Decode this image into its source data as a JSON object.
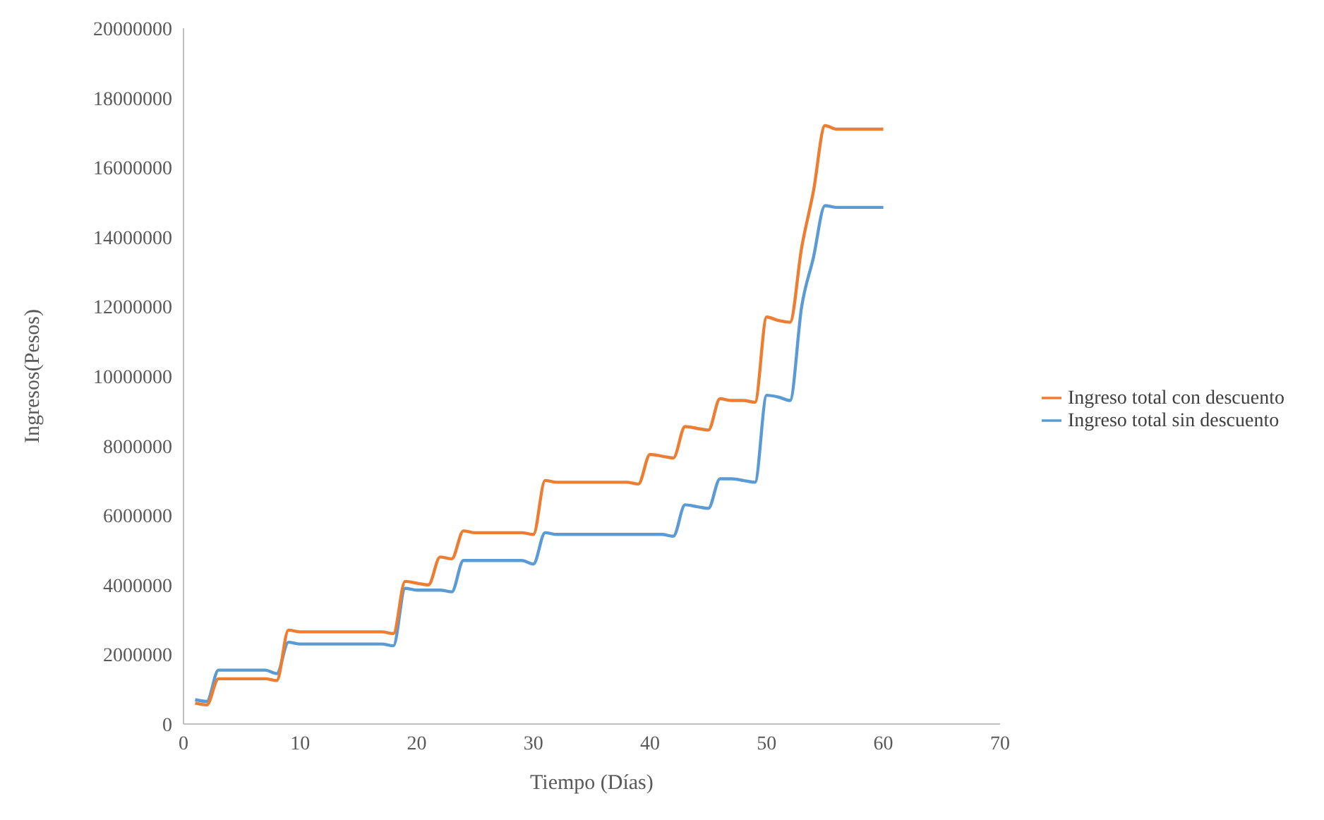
{
  "chart_data": {
    "type": "line",
    "xlabel": "Tiempo (Días)",
    "ylabel": "Ingresos(Pesos)",
    "x": [
      1,
      2,
      3,
      4,
      5,
      6,
      7,
      8,
      9,
      10,
      11,
      12,
      13,
      14,
      15,
      16,
      17,
      18,
      19,
      20,
      21,
      22,
      23,
      24,
      25,
      26,
      27,
      28,
      29,
      30,
      31,
      32,
      33,
      34,
      35,
      36,
      37,
      38,
      39,
      40,
      41,
      42,
      43,
      44,
      45,
      46,
      47,
      48,
      49,
      50,
      51,
      52,
      53,
      54,
      55,
      56,
      57,
      58,
      59,
      60
    ],
    "series": [
      {
        "name": "Ingreso total sin descuento",
        "color": "#5b9bd5",
        "values": [
          700000,
          650000,
          1550000,
          1550000,
          1550000,
          1550000,
          1550000,
          1450000,
          2350000,
          2300000,
          2300000,
          2300000,
          2300000,
          2300000,
          2300000,
          2300000,
          2300000,
          2250000,
          3900000,
          3850000,
          3850000,
          3850000,
          3800000,
          4700000,
          4700000,
          4700000,
          4700000,
          4700000,
          4700000,
          4600000,
          5500000,
          5450000,
          5450000,
          5450000,
          5450000,
          5450000,
          5450000,
          5450000,
          5450000,
          5450000,
          5450000,
          5400000,
          6300000,
          6250000,
          6200000,
          7050000,
          7050000,
          7000000,
          6950000,
          9450000,
          9400000,
          9300000,
          12000000,
          13400000,
          14900000,
          14850000,
          14850000,
          14850000,
          14850000,
          14850000
        ]
      },
      {
        "name": "Ingreso total con descuento",
        "color": "#ed7d31",
        "values": [
          600000,
          550000,
          1300000,
          1300000,
          1300000,
          1300000,
          1300000,
          1250000,
          2700000,
          2650000,
          2650000,
          2650000,
          2650000,
          2650000,
          2650000,
          2650000,
          2650000,
          2600000,
          4100000,
          4050000,
          4000000,
          4800000,
          4750000,
          5550000,
          5500000,
          5500000,
          5500000,
          5500000,
          5500000,
          5450000,
          7000000,
          6950000,
          6950000,
          6950000,
          6950000,
          6950000,
          6950000,
          6950000,
          6900000,
          7750000,
          7700000,
          7650000,
          8550000,
          8500000,
          8450000,
          9350000,
          9300000,
          9300000,
          9250000,
          11700000,
          11600000,
          11550000,
          13700000,
          15300000,
          17200000,
          17100000,
          17100000,
          17100000,
          17100000,
          17100000
        ]
      }
    ],
    "xlim": [
      0,
      70
    ],
    "xticks": [
      0,
      10,
      20,
      30,
      40,
      50,
      60,
      70
    ],
    "ylim": [
      0,
      20000000
    ],
    "yticks": [
      0,
      2000000,
      4000000,
      6000000,
      8000000,
      10000000,
      12000000,
      14000000,
      16000000,
      18000000,
      20000000
    ],
    "grid": false,
    "legend": "right",
    "marker": "none",
    "line_style": "solid"
  }
}
